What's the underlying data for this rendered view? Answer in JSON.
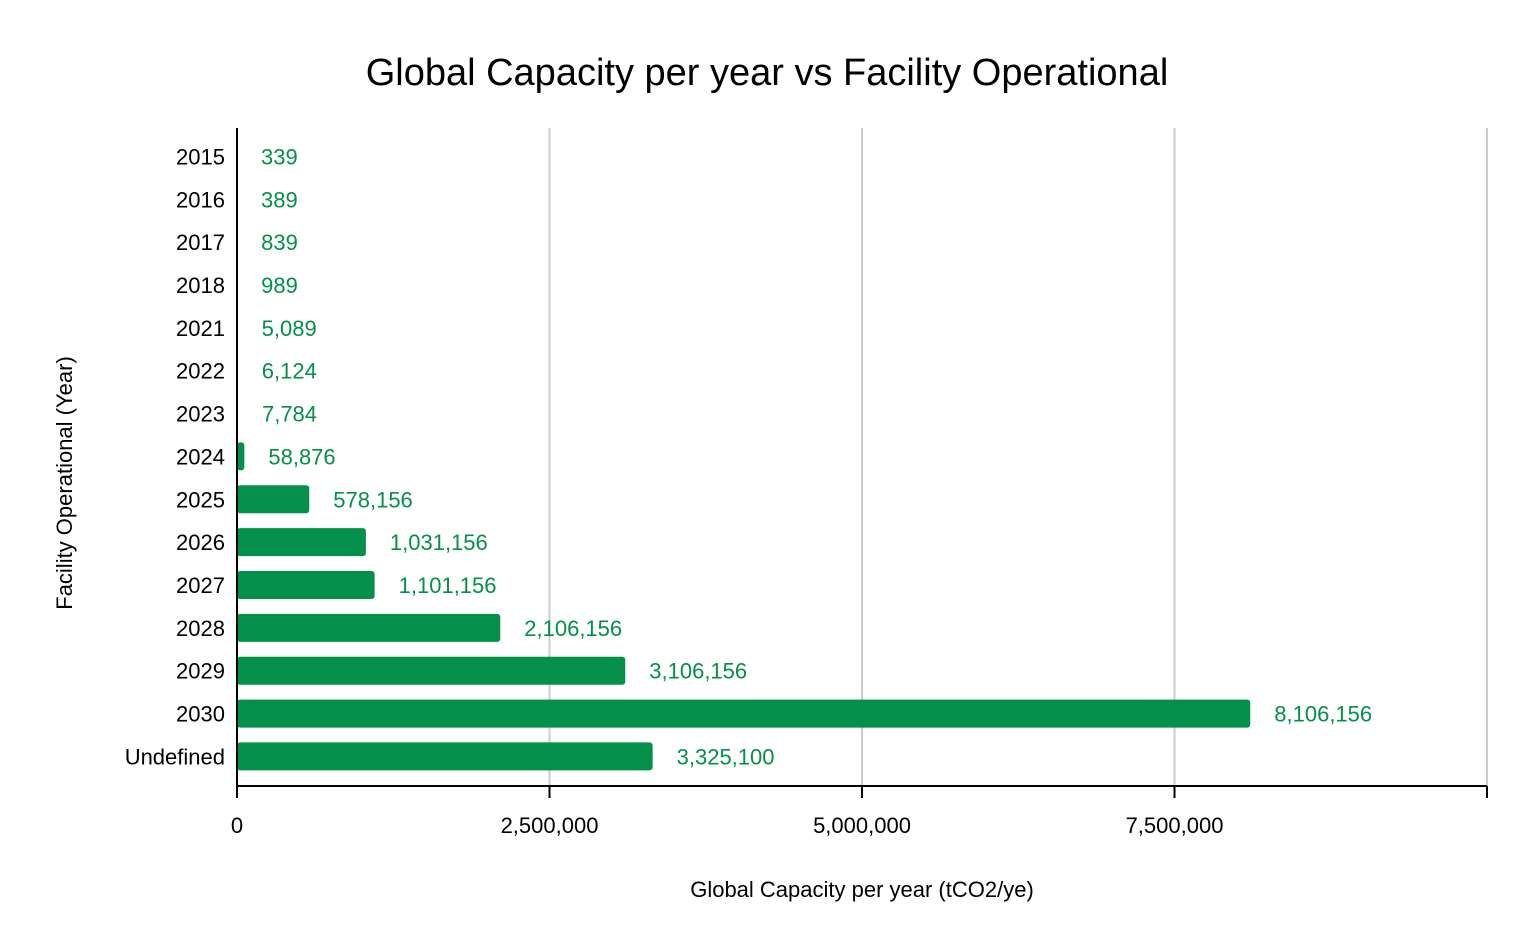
{
  "chart_data": {
    "type": "bar",
    "orientation": "horizontal",
    "title": "Global Capacity per year vs Facility Operational",
    "xlabel": "Global Capacity per year (tCO2/ye)",
    "ylabel": "Facility Operational (Year)",
    "categories": [
      "2015",
      "2016",
      "2017",
      "2018",
      "2021",
      "2022",
      "2023",
      "2024",
      "2025",
      "2026",
      "2027",
      "2028",
      "2029",
      "2030",
      "Undefined"
    ],
    "values": [
      339,
      389,
      839,
      989,
      5089,
      6124,
      7784,
      58876,
      578156,
      1031156,
      1101156,
      2106156,
      3106156,
      8106156,
      3325100
    ],
    "data_labels": [
      "339",
      "389",
      "839",
      "989",
      "5,089",
      "6,124",
      "7,784",
      "58,876",
      "578,156",
      "1,031,156",
      "1,101,156",
      "2,106,156",
      "3,106,156",
      "8,106,156",
      "3,325,100"
    ],
    "xlim": [
      0,
      10000000
    ],
    "xticks": [
      0,
      2500000,
      5000000,
      7500000
    ],
    "xtick_labels": [
      "0",
      "2,500,000",
      "5,000,000",
      "7,500,000"
    ],
    "grid": true,
    "legend": "none",
    "colors": {
      "bar": "#048f4a",
      "data_label": "#048f4a",
      "gridline": "#cccccc",
      "text": "#000000"
    }
  }
}
